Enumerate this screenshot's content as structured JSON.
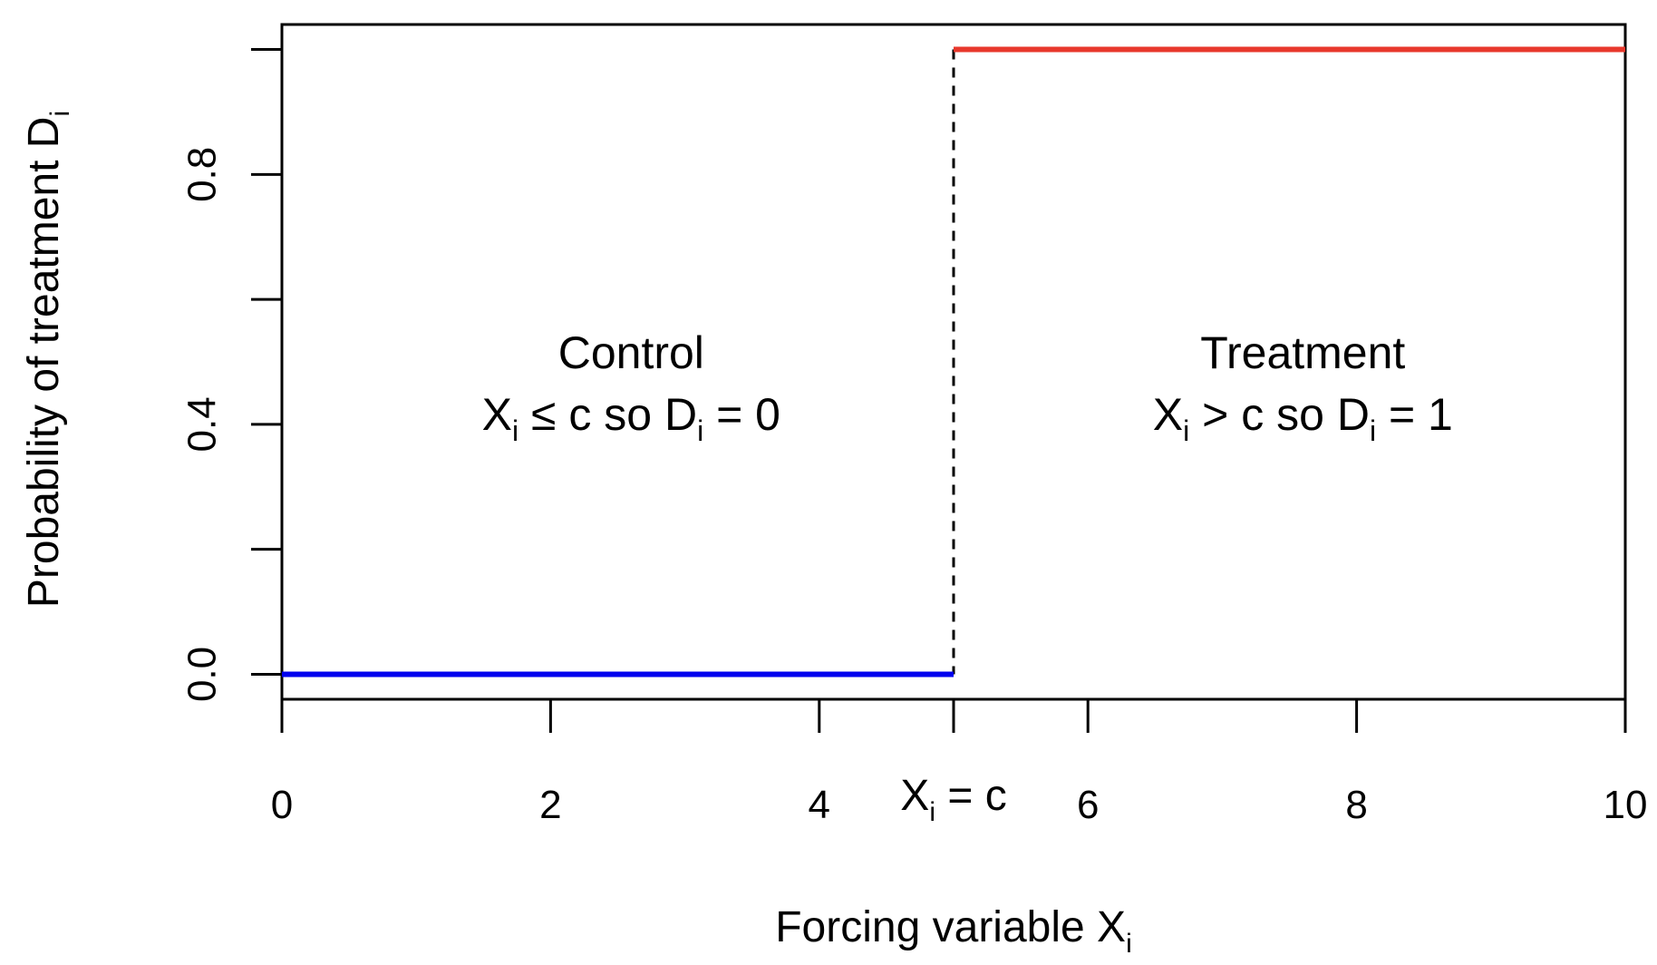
{
  "chart_data": {
    "type": "line",
    "xlabel": "Forcing variable X",
    "xlabel_sub": "i",
    "ylabel": "Probability of treatment D",
    "ylabel_sub": "i",
    "xlim": [
      0,
      10
    ],
    "ylim": [
      -0.04,
      1.04
    ],
    "x_ticks": [
      0,
      2,
      4,
      5,
      6,
      8,
      10
    ],
    "x_tick_labels": [
      "0",
      "2",
      "4",
      "",
      "6",
      "8",
      "10"
    ],
    "y_ticks": [
      0.0,
      0.2,
      0.4,
      0.6,
      0.8,
      1.0
    ],
    "y_tick_labels": [
      "0.0",
      "",
      "0.4",
      "",
      "0.8",
      ""
    ],
    "grid": false,
    "cutoff": {
      "x": 5,
      "label_main": "X",
      "label_sub": "i",
      "label_rest": " = c",
      "line_style": "dashed"
    },
    "series": [
      {
        "color": "#0000ee",
        "x": [
          0,
          5
        ],
        "y": [
          0,
          0
        ]
      },
      {
        "color": "#e8382c",
        "x": [
          5,
          10
        ],
        "y": [
          1,
          1
        ]
      }
    ],
    "annotations": [
      {
        "x": 2.6,
        "y": 0.49,
        "title": "Control",
        "line2": [
          {
            "t": "X",
            "sub": false
          },
          {
            "t": "i",
            "sub": true
          },
          {
            "t": " ≤ c so D",
            "sub": false
          },
          {
            "t": "i",
            "sub": true
          },
          {
            "t": " = 0",
            "sub": false
          }
        ]
      },
      {
        "x": 7.6,
        "y": 0.49,
        "title": "Treatment",
        "line2": [
          {
            "t": "X",
            "sub": false
          },
          {
            "t": "i",
            "sub": true
          },
          {
            "t": " > c so D",
            "sub": false
          },
          {
            "t": "i",
            "sub": true
          },
          {
            "t": " = 1",
            "sub": false
          }
        ]
      }
    ]
  }
}
